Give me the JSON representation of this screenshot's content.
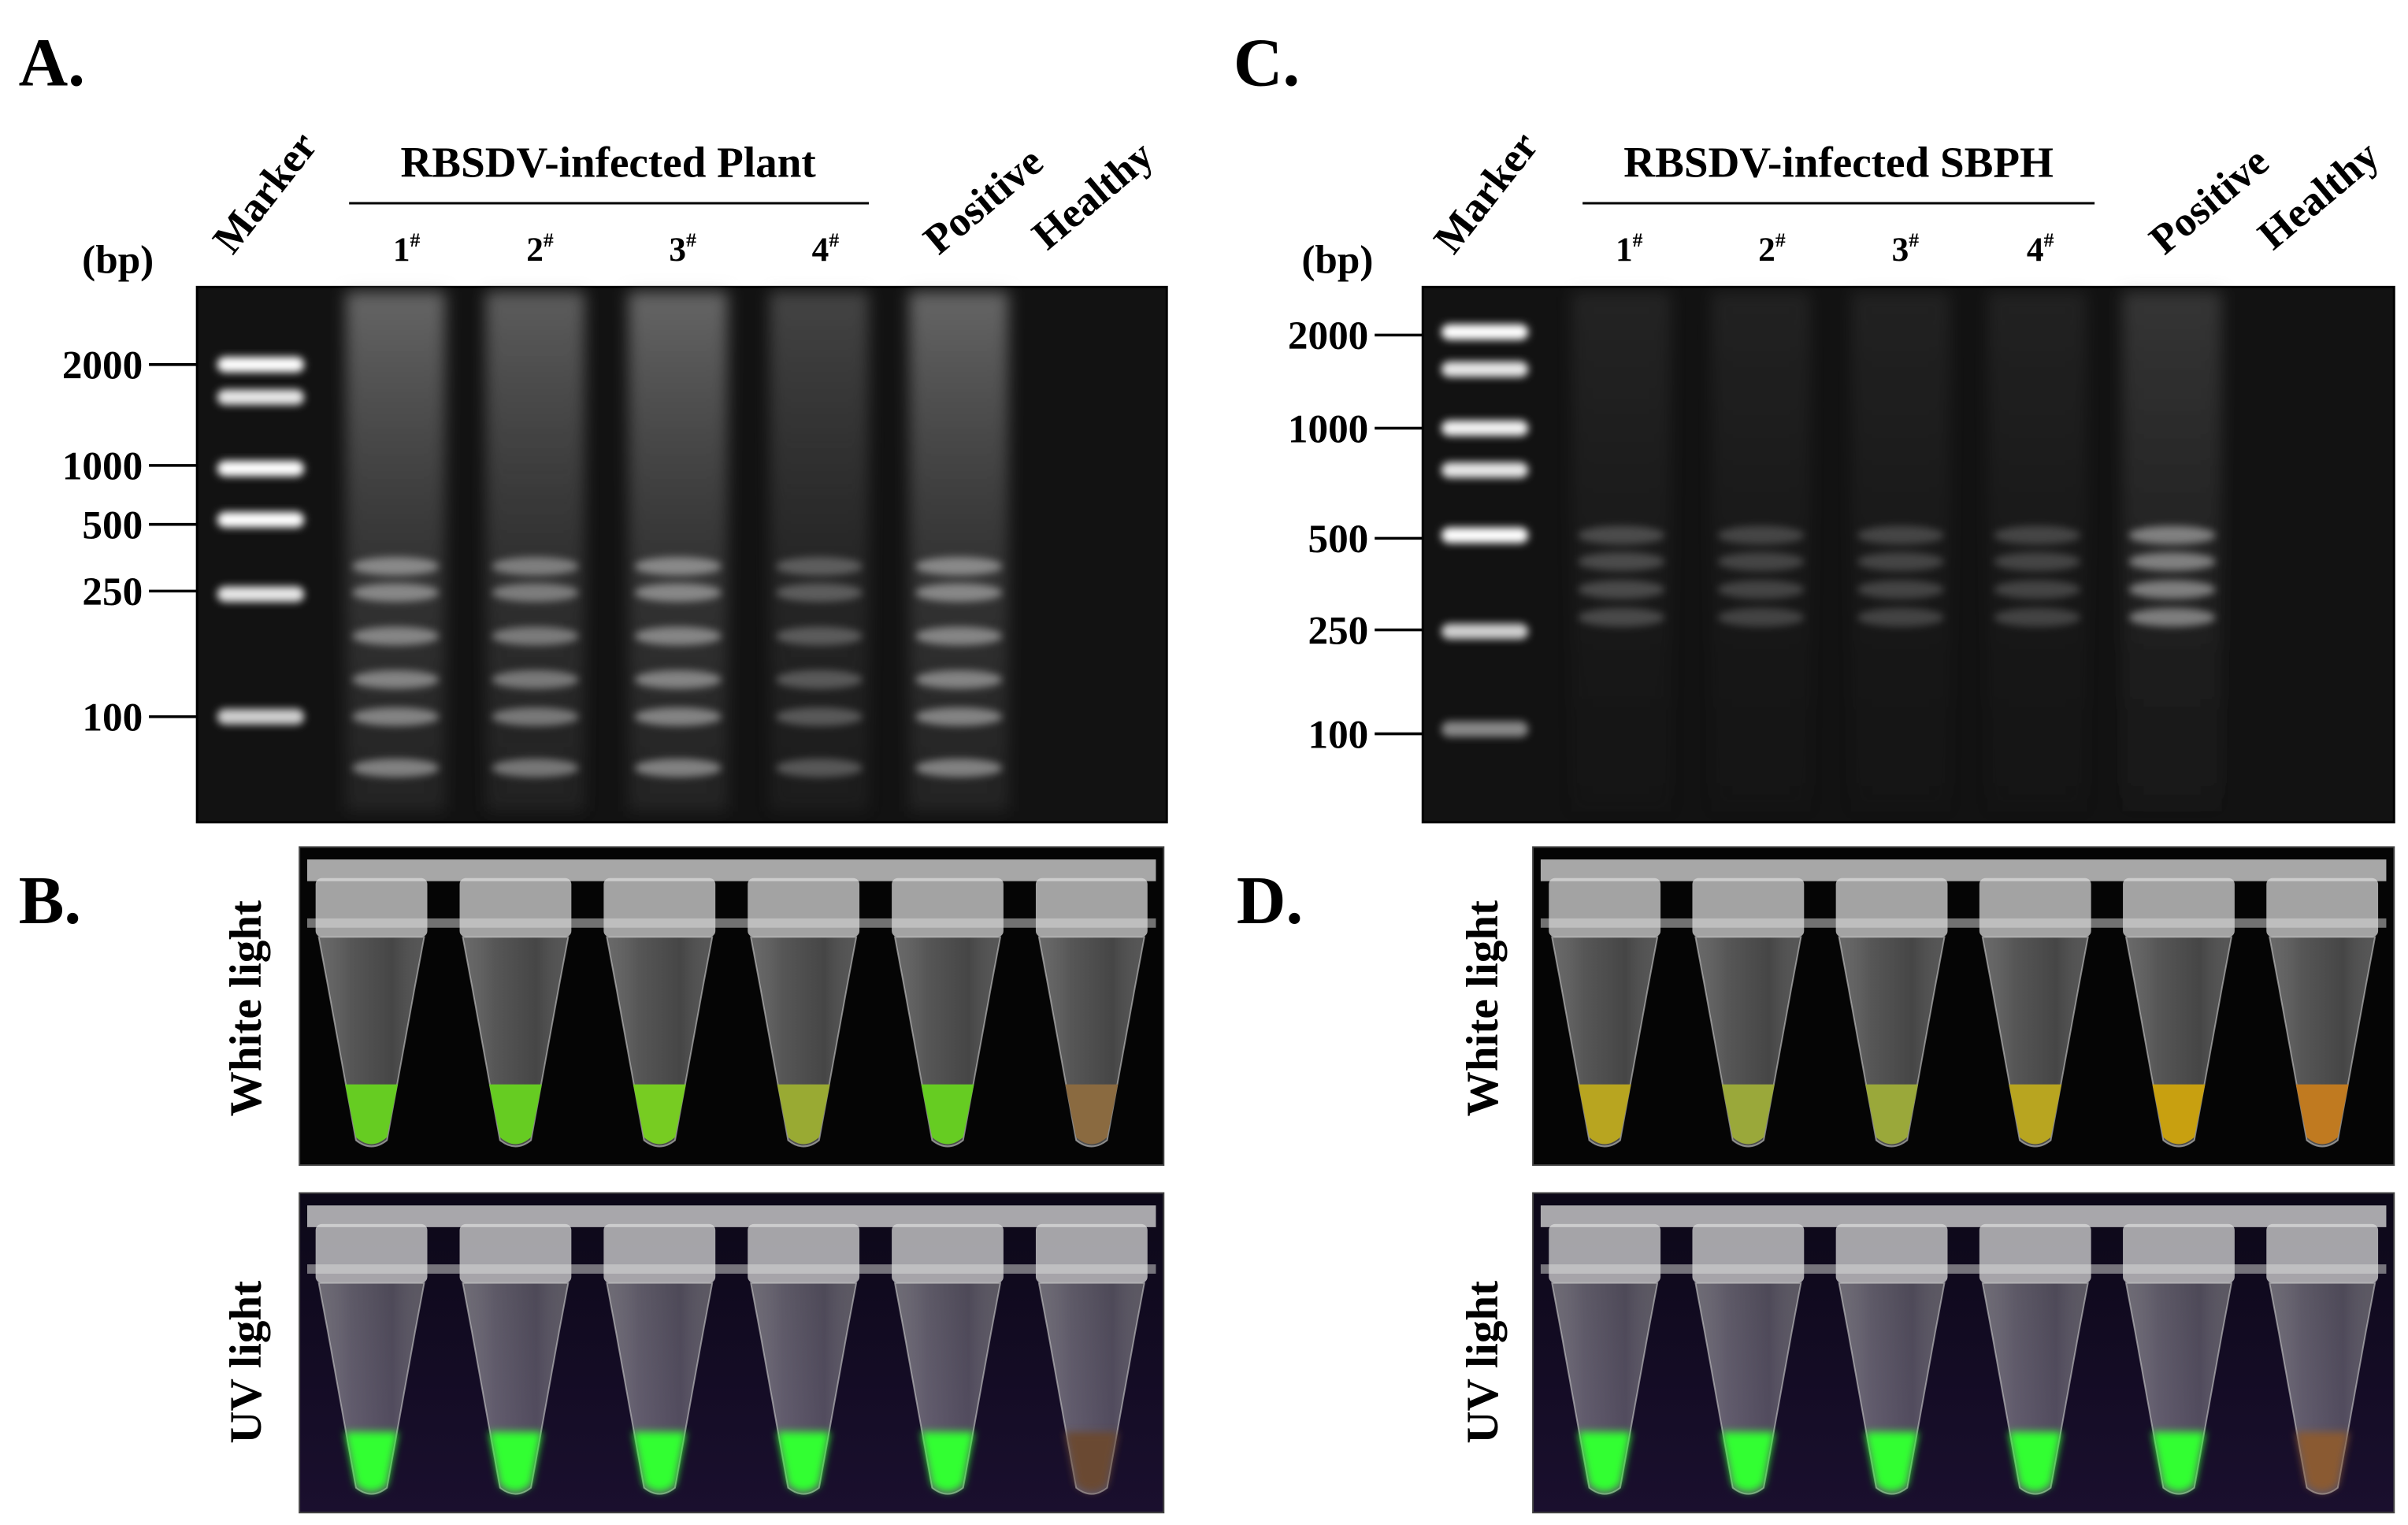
{
  "panel_a": {
    "letter": "A.",
    "bp_unit": "(bp)",
    "marker": "Marker",
    "group_title": "RBSDV-infected Plant",
    "lanes": [
      {
        "label": "1",
        "sup": "#"
      },
      {
        "label": "2",
        "sup": "#"
      },
      {
        "label": "3",
        "sup": "#"
      },
      {
        "label": "4",
        "sup": "#"
      }
    ],
    "positive": "Positive",
    "healthy": "Healthy",
    "size_ladder": [
      "2000",
      "1000",
      "500",
      "250",
      "100"
    ]
  },
  "panel_b": {
    "letter": "B.",
    "white_light": "White light",
    "uv_light": "UV light"
  },
  "panel_c": {
    "letter": "C.",
    "bp_unit": "(bp)",
    "marker": "Marker",
    "group_title": "RBSDV-infected SBPH",
    "lanes": [
      {
        "label": "1",
        "sup": "#"
      },
      {
        "label": "2",
        "sup": "#"
      },
      {
        "label": "3",
        "sup": "#"
      },
      {
        "label": "4",
        "sup": "#"
      }
    ],
    "positive": "Positive",
    "healthy": "Healthy",
    "size_ladder": [
      "2000",
      "1000",
      "500",
      "250",
      "100"
    ]
  },
  "panel_d": {
    "letter": "D.",
    "white_light": "White light",
    "uv_light": "UV light"
  }
}
